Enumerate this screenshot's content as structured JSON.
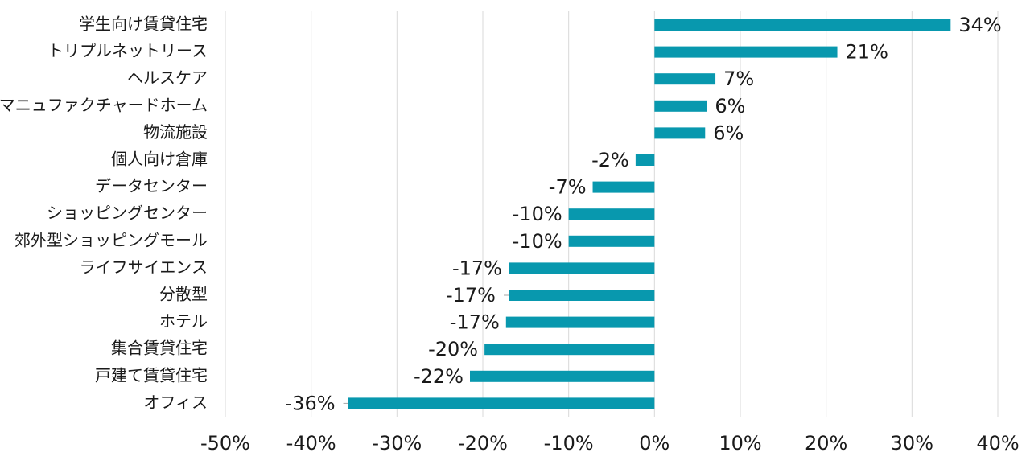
{
  "chart_data": {
    "type": "bar",
    "orientation": "horizontal",
    "title": "",
    "xlabel": "",
    "ylabel": "",
    "xlim": [
      -50,
      40
    ],
    "x_ticks": [
      -50,
      -40,
      -30,
      -20,
      -10,
      0,
      10,
      20,
      30,
      40
    ],
    "x_tick_labels": [
      "-50%",
      "-40%",
      "-30%",
      "-20%",
      "-10%",
      "0%",
      "10%",
      "20%",
      "30%",
      "40%"
    ],
    "grid": "vertical",
    "legend": "none",
    "bar_color": "#0898AE",
    "categories": [
      "学生向け賃貸住宅",
      "トリプルネットリース",
      "ヘルスケア",
      "マニュファクチャードホーム",
      "物流施設",
      "個人向け倉庫",
      "データセンター",
      "ショッピングセンター",
      "郊外型ショッピングモール",
      "ライフサイエンス",
      "分散型",
      "ホテル",
      "集合賃貸住宅",
      "戸建て賃貸住宅",
      "オフィス"
    ],
    "values": [
      34.5,
      21.3,
      7.1,
      6.1,
      5.9,
      -2.2,
      -7.2,
      -10.0,
      -10.0,
      -17.0,
      -17.0,
      -17.3,
      -19.8,
      -21.5,
      -35.7
    ],
    "value_labels": [
      "34%",
      "21%",
      "7%",
      "6%",
      "6%",
      "-2%",
      "-7%",
      "-10%",
      "-10%",
      "-17%",
      "-17%",
      "-17%",
      "-20%",
      "-22%",
      "-36%"
    ]
  }
}
